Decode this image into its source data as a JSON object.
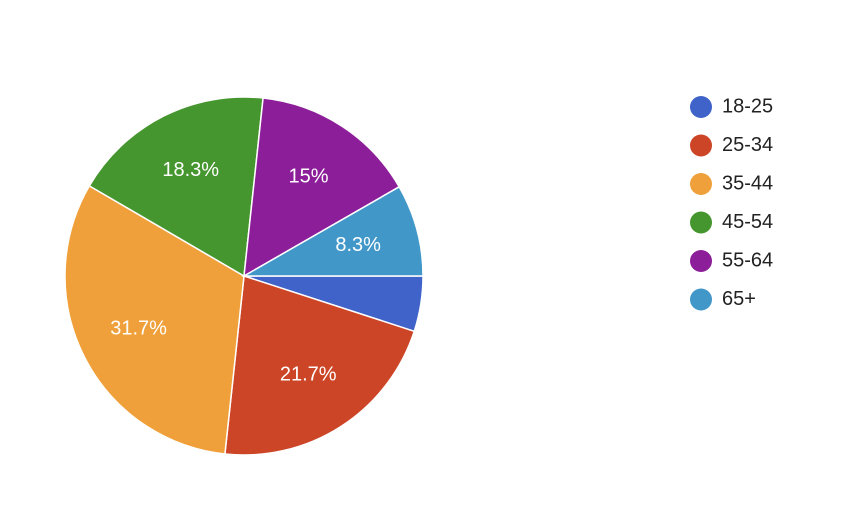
{
  "chart_data": {
    "type": "pie",
    "categories": [
      "18-25",
      "25-34",
      "35-44",
      "45-54",
      "55-64",
      "65+"
    ],
    "values": [
      5,
      21.7,
      31.7,
      18.3,
      15,
      8.3
    ],
    "value_labels": [
      null,
      "21.7%",
      "31.7%",
      "18.3%",
      "15%",
      "8.3%"
    ],
    "colors": [
      "#3f63c9",
      "#cc4527",
      "#f0a03a",
      "#46962f",
      "#8d1e99",
      "#4297c9"
    ],
    "legend": "right"
  }
}
